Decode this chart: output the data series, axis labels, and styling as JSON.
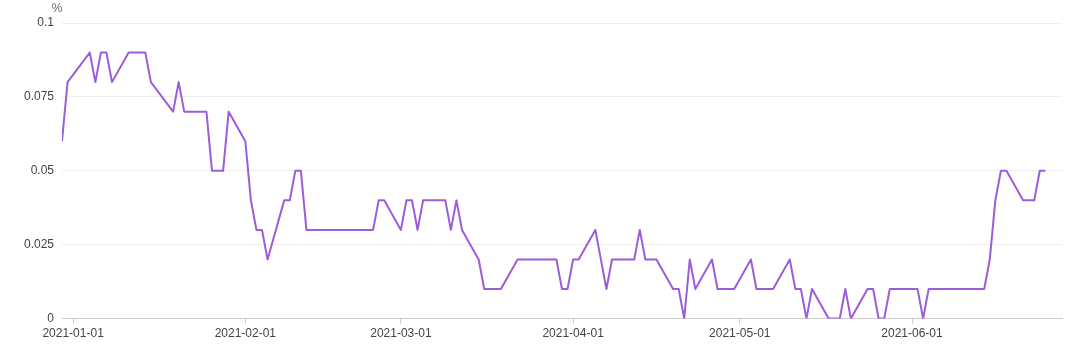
{
  "chart_data": {
    "type": "line",
    "ylabel": "%",
    "x": [
      "2020-12-30",
      "2020-12-31",
      "2021-01-04",
      "2021-01-05",
      "2021-01-06",
      "2021-01-07",
      "2021-01-08",
      "2021-01-11",
      "2021-01-14",
      "2021-01-15",
      "2021-01-19",
      "2021-01-20",
      "2021-01-21",
      "2021-01-25",
      "2021-01-26",
      "2021-01-28",
      "2021-01-29",
      "2021-02-01",
      "2021-02-02",
      "2021-02-03",
      "2021-02-04",
      "2021-02-05",
      "2021-02-08",
      "2021-02-09",
      "2021-02-10",
      "2021-02-11",
      "2021-02-12",
      "2021-02-24",
      "2021-02-25",
      "2021-02-26",
      "2021-03-01",
      "2021-03-02",
      "2021-03-03",
      "2021-03-04",
      "2021-03-05",
      "2021-03-09",
      "2021-03-10",
      "2021-03-11",
      "2021-03-12",
      "2021-03-15",
      "2021-03-16",
      "2021-03-19",
      "2021-03-22",
      "2021-03-29",
      "2021-03-30",
      "2021-03-31",
      "2021-04-01",
      "2021-04-02",
      "2021-04-05",
      "2021-04-07",
      "2021-04-08",
      "2021-04-12",
      "2021-04-13",
      "2021-04-14",
      "2021-04-16",
      "2021-04-19",
      "2021-04-20",
      "2021-04-21",
      "2021-04-22",
      "2021-04-23",
      "2021-04-26",
      "2021-04-27",
      "2021-04-30",
      "2021-05-03",
      "2021-05-04",
      "2021-05-07",
      "2021-05-10",
      "2021-05-11",
      "2021-05-12",
      "2021-05-13",
      "2021-05-14",
      "2021-05-17",
      "2021-05-19",
      "2021-05-20",
      "2021-05-21",
      "2021-05-24",
      "2021-05-25",
      "2021-05-26",
      "2021-05-27",
      "2021-05-28",
      "2021-06-02",
      "2021-06-03",
      "2021-06-04",
      "2021-06-14",
      "2021-06-15",
      "2021-06-16",
      "2021-06-17",
      "2021-06-18",
      "2021-06-21",
      "2021-06-23",
      "2021-06-24",
      "2021-06-25"
    ],
    "series": [
      {
        "color": "#9c5ddb",
        "values": [
          0.06,
          0.08,
          0.09,
          0.08,
          0.09,
          0.09,
          0.08,
          0.09,
          0.09,
          0.08,
          0.07,
          0.08,
          0.07,
          0.07,
          0.05,
          0.05,
          0.07,
          0.06,
          0.04,
          0.03,
          0.03,
          0.02,
          0.04,
          0.04,
          0.05,
          0.05,
          0.03,
          0.03,
          0.04,
          0.04,
          0.03,
          0.04,
          0.04,
          0.03,
          0.04,
          0.04,
          0.03,
          0.04,
          0.03,
          0.02,
          0.01,
          0.01,
          0.02,
          0.02,
          0.01,
          0.01,
          0.02,
          0.02,
          0.03,
          0.01,
          0.02,
          0.02,
          0.03,
          0.02,
          0.02,
          0.01,
          0.01,
          0,
          0.02,
          0.01,
          0.02,
          0.01,
          0.01,
          0.02,
          0.01,
          0.01,
          0.02,
          0.01,
          0.01,
          0,
          0.01,
          0,
          0,
          0.01,
          0,
          0.01,
          0.01,
          0,
          0,
          0.01,
          0.01,
          0,
          0.01,
          0.01,
          0.02,
          0.04,
          0.05,
          0.05,
          0.04,
          0.04,
          0.05,
          0.05
        ]
      }
    ],
    "xlim": [
      "2020-12-30",
      "2021-06-28"
    ],
    "xticks": [
      "2021-01-01",
      "2021-02-01",
      "2021-03-01",
      "2021-04-01",
      "2021-05-01",
      "2021-06-01"
    ],
    "ylim": [
      0,
      0.1
    ],
    "yticks": [
      0,
      0.025,
      0.05,
      0.075,
      0.1
    ],
    "grid": "y",
    "legend": false,
    "marker": "none",
    "line_style": "solid"
  }
}
